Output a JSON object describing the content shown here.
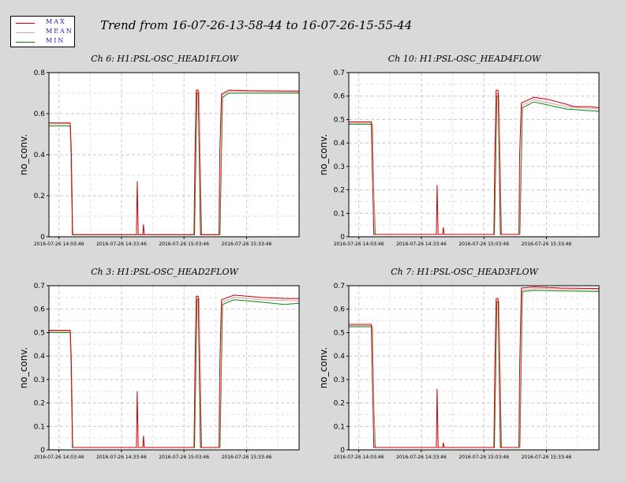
{
  "title": "Trend from 16-07-26-13-58-44 to 16-07-26-15-55-44",
  "legend": [
    {
      "label": "MAX",
      "color": "#cc0000"
    },
    {
      "label": "MEAN",
      "color": "#e29aa8"
    },
    {
      "label": "MIN",
      "color": "#008800"
    }
  ],
  "chart_data": [
    {
      "type": "line",
      "title": "Ch 6: H1:PSL-OSC_HEAD1FLOW",
      "ylabel": "no_conv.",
      "ylim": [
        0,
        0.8
      ],
      "yticks": [
        "0",
        "0.2",
        "0.4",
        "0.6",
        "0.8"
      ],
      "xticks": [
        "2016-07-26 14:03:46",
        "2016-07-26 14:33:46",
        "2016-07-26 15:03:46",
        "2016-07-26 15:33:46"
      ],
      "grid": true,
      "series": [
        {
          "name": "MAX",
          "points": [
            [
              0,
              0.555
            ],
            [
              0.082,
              0.555
            ],
            [
              0.085,
              0.555
            ],
            [
              0.089,
              0.44
            ],
            [
              0.092,
              0.22
            ],
            [
              0.094,
              0.01
            ],
            [
              0.35,
              0.01
            ],
            [
              0.353,
              0.27
            ],
            [
              0.357,
              0.01
            ],
            [
              0.375,
              0.01
            ],
            [
              0.378,
              0.06
            ],
            [
              0.381,
              0.01
            ],
            [
              0.58,
              0.01
            ],
            [
              0.584,
              0.4
            ],
            [
              0.589,
              0.715
            ],
            [
              0.597,
              0.715
            ],
            [
              0.601,
              0.4
            ],
            [
              0.606,
              0.01
            ],
            [
              0.68,
              0.01
            ],
            [
              0.683,
              0.4
            ],
            [
              0.69,
              0.695
            ],
            [
              0.72,
              0.715
            ],
            [
              0.8,
              0.712
            ],
            [
              1.0,
              0.71
            ]
          ]
        },
        {
          "name": "MEAN",
          "points": [
            [
              0,
              0.55
            ],
            [
              0.085,
              0.55
            ],
            [
              0.092,
              0.2
            ],
            [
              0.095,
              0.01
            ],
            [
              0.58,
              0.01
            ],
            [
              0.59,
              0.705
            ],
            [
              0.6,
              0.705
            ],
            [
              0.608,
              0.01
            ],
            [
              0.682,
              0.01
            ],
            [
              0.692,
              0.69
            ],
            [
              0.72,
              0.708
            ],
            [
              1.0,
              0.705
            ]
          ]
        },
        {
          "name": "MIN",
          "points": [
            [
              0,
              0.54
            ],
            [
              0.086,
              0.54
            ],
            [
              0.091,
              0.2
            ],
            [
              0.096,
              0.01
            ],
            [
              0.582,
              0.01
            ],
            [
              0.592,
              0.7
            ],
            [
              0.6,
              0.7
            ],
            [
              0.61,
              0.01
            ],
            [
              0.684,
              0.01
            ],
            [
              0.694,
              0.68
            ],
            [
              0.72,
              0.7
            ],
            [
              1.0,
              0.7
            ]
          ]
        }
      ]
    },
    {
      "type": "line",
      "title": "Ch 10: H1:PSL-OSC_HEAD4FLOW",
      "ylabel": "no_conv.",
      "ylim": [
        0,
        0.7
      ],
      "yticks": [
        "0",
        "0.1",
        "0.2",
        "0.3",
        "0.4",
        "0.5",
        "0.6",
        "0.7"
      ],
      "xticks": [
        "2016-07-26 14:03:46",
        "2016-07-26 14:33:46",
        "2016-07-26 15:03:46",
        "2016-07-26 15:33:46"
      ],
      "grid": true,
      "series": [
        {
          "name": "MAX",
          "points": [
            [
              0,
              0.49
            ],
            [
              0.09,
              0.49
            ],
            [
              0.095,
              0.25
            ],
            [
              0.1,
              0.01
            ],
            [
              0.35,
              0.01
            ],
            [
              0.353,
              0.22
            ],
            [
              0.357,
              0.01
            ],
            [
              0.375,
              0.01
            ],
            [
              0.378,
              0.04
            ],
            [
              0.381,
              0.01
            ],
            [
              0.58,
              0.01
            ],
            [
              0.584,
              0.35
            ],
            [
              0.589,
              0.625
            ],
            [
              0.597,
              0.625
            ],
            [
              0.601,
              0.35
            ],
            [
              0.606,
              0.01
            ],
            [
              0.68,
              0.01
            ],
            [
              0.683,
              0.35
            ],
            [
              0.69,
              0.57
            ],
            [
              0.74,
              0.595
            ],
            [
              0.8,
              0.585
            ],
            [
              0.87,
              0.565
            ],
            [
              0.9,
              0.555
            ],
            [
              0.97,
              0.555
            ],
            [
              1.0,
              0.55
            ]
          ]
        },
        {
          "name": "MEAN",
          "points": [
            [
              0,
              0.485
            ],
            [
              0.092,
              0.485
            ],
            [
              0.1,
              0.2
            ],
            [
              0.104,
              0.01
            ],
            [
              0.58,
              0.01
            ],
            [
              0.59,
              0.61
            ],
            [
              0.6,
              0.61
            ],
            [
              0.608,
              0.01
            ],
            [
              0.682,
              0.01
            ],
            [
              0.692,
              0.56
            ],
            [
              0.74,
              0.585
            ],
            [
              0.87,
              0.555
            ],
            [
              1.0,
              0.545
            ]
          ]
        },
        {
          "name": "MIN",
          "points": [
            [
              0,
              0.48
            ],
            [
              0.094,
              0.48
            ],
            [
              0.1,
              0.2
            ],
            [
              0.106,
              0.01
            ],
            [
              0.582,
              0.01
            ],
            [
              0.592,
              0.6
            ],
            [
              0.6,
              0.6
            ],
            [
              0.61,
              0.01
            ],
            [
              0.684,
              0.01
            ],
            [
              0.694,
              0.55
            ],
            [
              0.74,
              0.575
            ],
            [
              0.87,
              0.545
            ],
            [
              1.0,
              0.535
            ]
          ]
        }
      ]
    },
    {
      "type": "line",
      "title": "Ch 3: H1:PSL-OSC_HEAD2FLOW",
      "ylabel": "no_conv.",
      "ylim": [
        0,
        0.7
      ],
      "yticks": [
        "0",
        "0.1",
        "0.2",
        "0.3",
        "0.4",
        "0.5",
        "0.6",
        "0.7"
      ],
      "xticks": [
        "2016-07-26 14:03:46",
        "2016-07-26 14:33:46",
        "2016-07-26 15:03:46",
        "2016-07-26 15:33:46"
      ],
      "grid": true,
      "series": [
        {
          "name": "MAX",
          "points": [
            [
              0,
              0.51
            ],
            [
              0.082,
              0.51
            ],
            [
              0.085,
              0.51
            ],
            [
              0.089,
              0.4
            ],
            [
              0.092,
              0.2
            ],
            [
              0.094,
              0.01
            ],
            [
              0.35,
              0.01
            ],
            [
              0.353,
              0.25
            ],
            [
              0.357,
              0.01
            ],
            [
              0.375,
              0.01
            ],
            [
              0.378,
              0.06
            ],
            [
              0.381,
              0.01
            ],
            [
              0.58,
              0.01
            ],
            [
              0.584,
              0.35
            ],
            [
              0.589,
              0.655
            ],
            [
              0.597,
              0.655
            ],
            [
              0.601,
              0.35
            ],
            [
              0.606,
              0.01
            ],
            [
              0.68,
              0.01
            ],
            [
              0.683,
              0.35
            ],
            [
              0.69,
              0.64
            ],
            [
              0.74,
              0.66
            ],
            [
              0.85,
              0.65
            ],
            [
              0.95,
              0.645
            ],
            [
              1.0,
              0.645
            ]
          ]
        },
        {
          "name": "MEAN",
          "points": [
            [
              0,
              0.505
            ],
            [
              0.085,
              0.505
            ],
            [
              0.092,
              0.2
            ],
            [
              0.095,
              0.01
            ],
            [
              0.58,
              0.01
            ],
            [
              0.59,
              0.645
            ],
            [
              0.6,
              0.645
            ],
            [
              0.608,
              0.01
            ],
            [
              0.682,
              0.01
            ],
            [
              0.692,
              0.63
            ],
            [
              0.74,
              0.65
            ],
            [
              0.85,
              0.64
            ],
            [
              1.0,
              0.635
            ]
          ]
        },
        {
          "name": "MIN",
          "points": [
            [
              0,
              0.5
            ],
            [
              0.086,
              0.5
            ],
            [
              0.091,
              0.2
            ],
            [
              0.096,
              0.01
            ],
            [
              0.582,
              0.01
            ],
            [
              0.592,
              0.64
            ],
            [
              0.6,
              0.64
            ],
            [
              0.61,
              0.01
            ],
            [
              0.684,
              0.01
            ],
            [
              0.694,
              0.62
            ],
            [
              0.74,
              0.64
            ],
            [
              0.85,
              0.63
            ],
            [
              0.94,
              0.62
            ],
            [
              1.0,
              0.625
            ]
          ]
        }
      ]
    },
    {
      "type": "line",
      "title": "Ch 7: H1:PSL-OSC_HEAD3FLOW",
      "ylabel": "no_conv.",
      "ylim": [
        0,
        0.7
      ],
      "yticks": [
        "0",
        "0.1",
        "0.2",
        "0.3",
        "0.4",
        "0.5",
        "0.6",
        "0.7"
      ],
      "xticks": [
        "2016-07-26 14:03:46",
        "2016-07-26 14:33:46",
        "2016-07-26 15:03:46",
        "2016-07-26 15:33:46"
      ],
      "grid": true,
      "series": [
        {
          "name": "MAX",
          "points": [
            [
              0,
              0.535
            ],
            [
              0.09,
              0.535
            ],
            [
              0.095,
              0.28
            ],
            [
              0.1,
              0.01
            ],
            [
              0.35,
              0.01
            ],
            [
              0.353,
              0.26
            ],
            [
              0.357,
              0.01
            ],
            [
              0.375,
              0.01
            ],
            [
              0.378,
              0.03
            ],
            [
              0.381,
              0.01
            ],
            [
              0.58,
              0.01
            ],
            [
              0.584,
              0.35
            ],
            [
              0.589,
              0.645
            ],
            [
              0.597,
              0.645
            ],
            [
              0.601,
              0.35
            ],
            [
              0.606,
              0.01
            ],
            [
              0.68,
              0.01
            ],
            [
              0.683,
              0.35
            ],
            [
              0.69,
              0.69
            ],
            [
              0.74,
              0.695
            ],
            [
              0.85,
              0.69
            ],
            [
              1.0,
              0.688
            ]
          ]
        },
        {
          "name": "MEAN",
          "points": [
            [
              0,
              0.53
            ],
            [
              0.092,
              0.53
            ],
            [
              0.1,
              0.2
            ],
            [
              0.104,
              0.01
            ],
            [
              0.58,
              0.01
            ],
            [
              0.59,
              0.635
            ],
            [
              0.6,
              0.635
            ],
            [
              0.608,
              0.01
            ],
            [
              0.682,
              0.01
            ],
            [
              0.692,
              0.68
            ],
            [
              0.74,
              0.688
            ],
            [
              1.0,
              0.682
            ]
          ]
        },
        {
          "name": "MIN",
          "points": [
            [
              0,
              0.525
            ],
            [
              0.094,
              0.525
            ],
            [
              0.1,
              0.2
            ],
            [
              0.106,
              0.01
            ],
            [
              0.582,
              0.01
            ],
            [
              0.592,
              0.63
            ],
            [
              0.6,
              0.63
            ],
            [
              0.61,
              0.01
            ],
            [
              0.684,
              0.01
            ],
            [
              0.694,
              0.675
            ],
            [
              0.74,
              0.68
            ],
            [
              1.0,
              0.675
            ]
          ]
        }
      ]
    }
  ]
}
